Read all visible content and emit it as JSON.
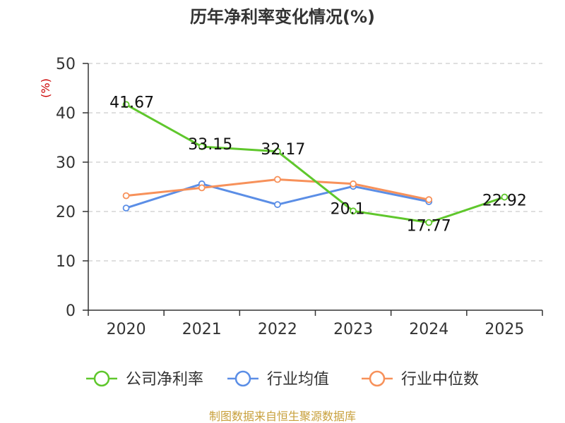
{
  "chart_data": {
    "type": "line",
    "title": "历年净利率变化情况(%)",
    "ylabel": "(%)",
    "ylabel_color": "#cc0000",
    "categories": [
      "2020",
      "2021",
      "2022",
      "2023",
      "2024",
      "2025"
    ],
    "ylim": [
      0,
      50
    ],
    "yticks": [
      "0",
      "10",
      "20",
      "30",
      "40",
      "50"
    ],
    "grid": "dashed horizontal",
    "legend_position": "bottom",
    "series": [
      {
        "name": "公司净利率",
        "color": "#5fc72c",
        "values": [
          41.67,
          33.15,
          32.17,
          20.1,
          17.77,
          22.92
        ],
        "labels": [
          "41.67",
          "33.15",
          "32.17",
          "20.1",
          "17.77",
          "22.92"
        ]
      },
      {
        "name": "行业均值",
        "color": "#5b8ee6",
        "values": [
          20.7,
          25.6,
          21.4,
          25.1,
          22.0,
          null
        ]
      },
      {
        "name": "行业中位数",
        "color": "#f7915a",
        "values": [
          23.2,
          24.8,
          26.5,
          25.6,
          22.4,
          null
        ]
      }
    ]
  },
  "source": {
    "text": "制图数据来自恒生聚源数据库",
    "color": "#c8a03c"
  }
}
